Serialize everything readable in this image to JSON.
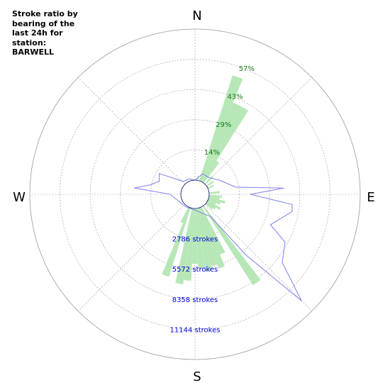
{
  "title_lines": [
    "Stroke ratio by",
    "bearing of the",
    "last 24h for",
    "station:",
    "BARWELL"
  ],
  "compass": {
    "north": "N",
    "east": "E",
    "south": "S",
    "west": "W"
  },
  "colors": {
    "ratio_fill": "#b7e7b7",
    "count_line": "#8888ee",
    "grid": "#999999",
    "center_fill": "#ffffff"
  },
  "chart_data": {
    "type": "polar",
    "title": "Stroke ratio by bearing of the last 24h for station: BARWELL",
    "angle_unit": "degrees bearing",
    "bin_width_deg": 5,
    "ratio_axis": {
      "ticks": [
        14,
        29,
        43,
        57
      ],
      "labels": [
        "14%",
        "29%",
        "43%",
        "57%"
      ],
      "max": 71
    },
    "count_axis": {
      "ticks": [
        2786,
        5572,
        8358,
        11144
      ],
      "labels": [
        "2786 strokes",
        "5572 strokes",
        "8358 strokes",
        "11144 strokes"
      ],
      "max": 13930
    },
    "grid": true,
    "series": [
      {
        "kind": "ratio_bars",
        "points": [
          {
            "bearing": 10,
            "value": 2
          },
          {
            "bearing": 20,
            "value": 52
          },
          {
            "bearing": 25,
            "value": 40
          },
          {
            "bearing": 30,
            "value": 40
          },
          {
            "bearing": 35,
            "value": 12
          },
          {
            "bearing": 45,
            "value": 5
          },
          {
            "bearing": 55,
            "value": 4
          },
          {
            "bearing": 65,
            "value": 3
          },
          {
            "bearing": 85,
            "value": 5
          },
          {
            "bearing": 95,
            "value": 6
          },
          {
            "bearing": 100,
            "value": 5
          },
          {
            "bearing": 105,
            "value": 8
          },
          {
            "bearing": 110,
            "value": 6
          },
          {
            "bearing": 115,
            "value": 4
          },
          {
            "bearing": 120,
            "value": 7
          },
          {
            "bearing": 125,
            "value": 5
          },
          {
            "bearing": 130,
            "value": 4
          },
          {
            "bearing": 145,
            "value": 44
          },
          {
            "bearing": 155,
            "value": 24
          },
          {
            "bearing": 160,
            "value": 30
          },
          {
            "bearing": 165,
            "value": 28
          },
          {
            "bearing": 170,
            "value": 30
          },
          {
            "bearing": 175,
            "value": 28
          },
          {
            "bearing": 180,
            "value": 26
          },
          {
            "bearing": 185,
            "value": 34
          },
          {
            "bearing": 190,
            "value": 36
          },
          {
            "bearing": 200,
            "value": 34
          },
          {
            "bearing": 205,
            "value": 8
          }
        ]
      },
      {
        "kind": "count_line",
        "points": [
          {
            "bearing": 0,
            "count": 0
          },
          {
            "bearing": 20,
            "count": 700
          },
          {
            "bearing": 40,
            "count": 700
          },
          {
            "bearing": 60,
            "count": 1300
          },
          {
            "bearing": 80,
            "count": 2500
          },
          {
            "bearing": 86,
            "count": 6900
          },
          {
            "bearing": 90,
            "count": 3800
          },
          {
            "bearing": 96,
            "count": 7700
          },
          {
            "bearing": 100,
            "count": 7800
          },
          {
            "bearing": 112,
            "count": 6200
          },
          {
            "bearing": 118,
            "count": 8100
          },
          {
            "bearing": 128,
            "count": 8900
          },
          {
            "bearing": 135,
            "count": 12600
          },
          {
            "bearing": 140,
            "count": 6000
          },
          {
            "bearing": 145,
            "count": 1200
          },
          {
            "bearing": 165,
            "count": 400
          },
          {
            "bearing": 180,
            "count": 150
          },
          {
            "bearing": 215,
            "count": 120
          },
          {
            "bearing": 270,
            "count": 1000
          },
          {
            "bearing": 276,
            "count": 4300
          },
          {
            "bearing": 282,
            "count": 2900
          },
          {
            "bearing": 290,
            "count": 2200
          },
          {
            "bearing": 300,
            "count": 2500
          },
          {
            "bearing": 318,
            "count": 300
          },
          {
            "bearing": 340,
            "count": 200
          },
          {
            "bearing": 360,
            "count": 0
          }
        ]
      }
    ]
  }
}
